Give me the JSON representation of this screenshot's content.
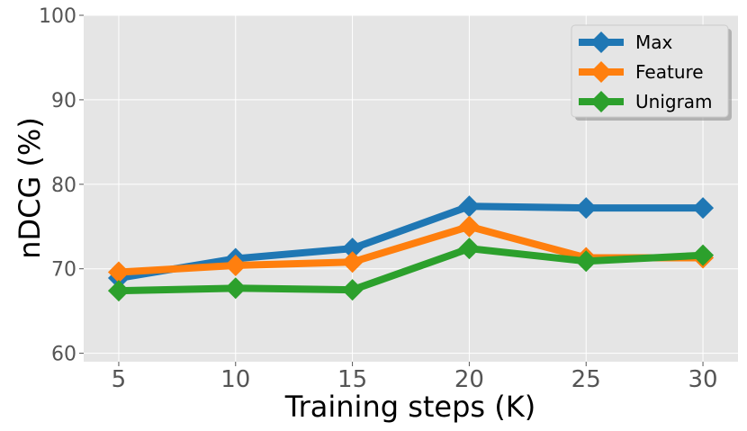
{
  "chart_data": {
    "type": "line",
    "xlabel": "Training steps (K)",
    "ylabel": "nDCG (%)",
    "x": [
      5,
      10,
      15,
      20,
      25,
      30
    ],
    "x_ticks": [
      "5",
      "10",
      "15",
      "20",
      "25",
      "30"
    ],
    "y_ticks": [
      "60",
      "70",
      "80",
      "90",
      "100"
    ],
    "xlim": [
      3.5,
      31.5
    ],
    "ylim": [
      59,
      100
    ],
    "grid": true,
    "legend_position": "top-right",
    "series": [
      {
        "name": "Max",
        "color": "#1f77b4",
        "values": [
          68.9,
          71.2,
          72.4,
          77.4,
          77.2,
          77.2
        ]
      },
      {
        "name": "Feature",
        "color": "#ff7f0e",
        "values": [
          69.6,
          70.4,
          70.8,
          75.0,
          71.3,
          71.3
        ]
      },
      {
        "name": "Unigram",
        "color": "#2ca02c",
        "values": [
          67.4,
          67.7,
          67.5,
          72.4,
          70.9,
          71.6
        ]
      }
    ]
  }
}
